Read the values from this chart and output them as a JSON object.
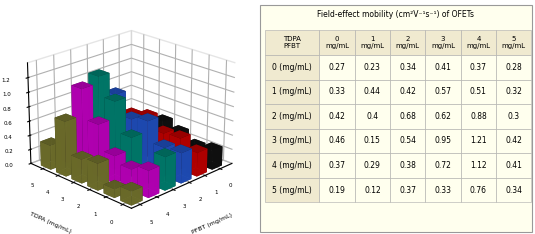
{
  "mobility": [
    [
      0.27,
      0.23,
      0.34,
      0.41,
      0.37,
      0.28
    ],
    [
      0.33,
      0.44,
      0.42,
      0.57,
      0.51,
      0.32
    ],
    [
      0.42,
      0.4,
      0.68,
      0.62,
      0.88,
      0.3
    ],
    [
      0.46,
      0.15,
      0.54,
      0.95,
      1.21,
      0.42
    ],
    [
      0.37,
      0.29,
      0.38,
      0.72,
      1.12,
      0.41
    ],
    [
      0.19,
      0.12,
      0.37,
      0.33,
      0.76,
      0.34
    ]
  ],
  "pfbt_labels": [
    "0 (mg/mL)",
    "1 (mg/mL)",
    "2 (mg/mL)",
    "3 (mg/mL)",
    "4 (mg/mL)",
    "5 (mg/mL)"
  ],
  "tdpa_labels": [
    "0",
    "1",
    "2",
    "3",
    "4",
    "5"
  ],
  "bar_colors_by_pfbt": [
    "#111111",
    "#cc0000",
    "#2255cc",
    "#008877",
    "#cc00cc",
    "#7a7a30"
  ],
  "zlabel": "Field-effect mobility (cm²V⁻¹s⁻¹)",
  "xlabel_3d": "PFBT (mg/mL)",
  "ylabel_3d": "TDPA (mg/mL)",
  "title_table": "Field-effect mobility (cm²V⁻¹s⁻¹) of OFETs",
  "table_bg": "#ffffee",
  "table_header_bg": "#f0ead0",
  "zticks": [
    0.0,
    0.2,
    0.4,
    0.6,
    0.8,
    1.0,
    1.2
  ],
  "zlim": [
    0,
    1.4
  ],
  "elev": 22,
  "azim": 225
}
